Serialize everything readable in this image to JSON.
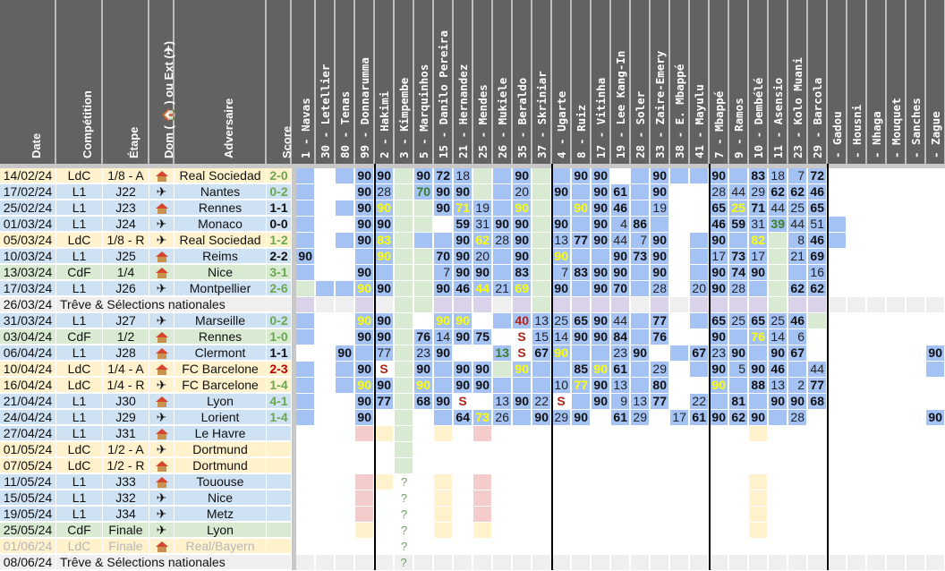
{
  "colors": {
    "header_bg": "#626262",
    "ldc_row": "#fff2cc",
    "l1_row": "#cfe2f3",
    "cdf_row": "#d9ead3",
    "break_row": "#efefef",
    "played_cell": "#a4c2f4",
    "green_cell": "#d9ead3",
    "lilac_cell": "#d9d2e9",
    "red_cell": "#f4cccc",
    "yellow_cell": "#fff2cc"
  },
  "headers": {
    "date": "Date",
    "competition": "Compétition",
    "stage": "Étape",
    "home_away": "Dom ( 🏠 ) ou Ext (✈)",
    "opponent": "Adversaire",
    "score": "Score"
  },
  "players": [
    "1 - Navas",
    "30 - Letellier",
    "80 - Tenas",
    "99 - Donnarumma",
    "2 - Hakimi",
    "3 - Kimpembe",
    "5 - Marquinhos",
    "15 - Danilo Pereira",
    "21 - Hernandez",
    "25 - Mendes",
    "26 - Mukiele",
    "35 - Beraldo",
    "37 - Skriniar",
    "4 - Ugarte",
    "8 - Ruiz",
    "17 - Vitinha",
    "19 - Lee Kang-In",
    "28 - Soler",
    "33 - Zaire-Emery",
    "38 - E. Mbappé",
    "41 - Mayulu",
    "7 - Mbappé",
    "9 - Ramos",
    "10 - Dembélé",
    "11 - Asensio",
    "23 - Kolo Muani",
    "29 - Barcola",
    " - Gadou",
    " - Housni",
    " - Nhaga",
    " - Mouquet",
    " - Sanches",
    " - Zague"
  ],
  "icons": {
    "home": "house-icon",
    "away": "plane-icon"
  },
  "matches": [
    {
      "date": "14/02/24",
      "comp": "LdC",
      "stage": "1/8 - A",
      "venue": "home",
      "opp": "Real Sociedad",
      "score": "2-0",
      "res": "w",
      "type": "ldc",
      "cells": [
        "p",
        "",
        "p",
        "90|b",
        "90|b",
        "g",
        "90|b",
        "72|b",
        "18",
        "g",
        "p",
        "90|b",
        "g",
        "p",
        "90|b",
        "90|b",
        "",
        "p",
        "90|b",
        "p",
        "p",
        "90|b",
        "p",
        "83|b",
        "18",
        "7",
        "72|b"
      ]
    },
    {
      "date": "17/02/24",
      "comp": "L1",
      "stage": "J22",
      "venue": "away",
      "opp": "Nantes",
      "score": "0-2",
      "res": "w",
      "type": "l1",
      "cells": [
        "p",
        "",
        "",
        "90|b",
        "28",
        "g",
        "70|g",
        "90|b",
        "90|b",
        "g",
        "p",
        "20",
        "g",
        "90|b",
        "p",
        "90|b",
        "61|b",
        "p",
        "90|b",
        "",
        "",
        "28",
        "44",
        "29",
        "62|b",
        "62|b",
        "46|b"
      ]
    },
    {
      "date": "25/02/24",
      "comp": "L1",
      "stage": "J23",
      "venue": "home",
      "opp": "Rennes",
      "score": "1-1",
      "res": "d",
      "type": "l1",
      "cells": [
        "p",
        "",
        "p",
        "90|b",
        "90|y",
        "g",
        "g",
        "90|b",
        "71|y",
        "19",
        "p",
        "90|y",
        "g",
        "p",
        "90|y",
        "90|b",
        "46|b",
        "p",
        "19",
        "",
        "",
        "65|b",
        "25|y",
        "71|b",
        "44",
        "25",
        "65|b"
      ]
    },
    {
      "date": "01/03/24",
      "comp": "L1",
      "stage": "J24",
      "venue": "away",
      "opp": "Monaco",
      "score": "0-0",
      "res": "d",
      "type": "l1",
      "cells": [
        "p",
        "",
        "",
        "90|b",
        "90|b",
        "g",
        "g",
        "",
        "59|b",
        "31",
        "90|b",
        "90|b",
        "g",
        "90|b",
        "p",
        "90|b",
        "4",
        "86|b",
        "p",
        "",
        "",
        "46|b",
        "59|b",
        "31",
        "39|g",
        "44",
        "51",
        "p"
      ]
    },
    {
      "date": "05/03/24",
      "comp": "LdC",
      "stage": "1/8 - R",
      "venue": "away",
      "opp": "Real Sociedad",
      "score": "1-2",
      "res": "w",
      "type": "ldc",
      "cells": [
        "p",
        "",
        "p",
        "90|b",
        "83|y",
        "g",
        "p",
        "p",
        "90|b",
        "62|y",
        "28",
        "90|b",
        "g",
        "13",
        "77|b",
        "90|b",
        "44",
        "7",
        "90|b",
        "",
        "p",
        "90|b",
        "p",
        "82|y",
        "g",
        "8",
        "46|b",
        "p"
      ]
    },
    {
      "date": "10/03/24",
      "comp": "L1",
      "stage": "J25",
      "venue": "home",
      "opp": "Reims",
      "score": "2-2",
      "res": "d",
      "type": "l1",
      "cells": [
        "90|b",
        "",
        "",
        "p",
        "90|y",
        "g",
        "g",
        "70|b",
        "90|b",
        "20",
        "p",
        "90|b",
        "g",
        "90|y",
        "p",
        "p",
        "90|b",
        "73|b",
        "90|b",
        "",
        "p",
        "17",
        "73|b",
        "17",
        "g",
        "21",
        "69|b"
      ]
    },
    {
      "date": "13/03/24",
      "comp": "CdF",
      "stage": "1/4",
      "venue": "home",
      "opp": "Nice",
      "score": "3-1",
      "res": "w",
      "type": "cdf",
      "cells": [
        "p",
        "",
        "",
        "90|b",
        "p",
        "g",
        "g",
        "7",
        "90|b",
        "90|b",
        "p",
        "83|b",
        "g",
        "7",
        "83|b",
        "90|b",
        "90|b",
        "p",
        "90|b",
        "",
        "p",
        "90|b",
        "74|b",
        "90|b",
        "g",
        "p",
        "16"
      ]
    },
    {
      "date": "17/03/24",
      "comp": "L1",
      "stage": "J26",
      "venue": "away",
      "opp": "Montpellier",
      "score": "2-6",
      "res": "w",
      "type": "l1",
      "cells": [
        "g",
        "p",
        "p",
        "90|y",
        "90|b",
        "g",
        "g",
        "90|b",
        "46|b",
        "44|y",
        "21",
        "69|y",
        "g",
        "90|b",
        "p",
        "90|b",
        "70|b",
        "p",
        "28",
        "",
        "20",
        "90|b",
        "28",
        "p",
        "g",
        "62|b",
        "62|b"
      ]
    },
    {
      "date": "26/03/24",
      "break": "Trêve & Sélections nationales",
      "type": "break"
    },
    {
      "date": "31/03/24",
      "comp": "L1",
      "stage": "J27",
      "venue": "away",
      "opp": "Marseille",
      "score": "0-2",
      "res": "w",
      "type": "l1",
      "cells": [
        "p",
        "",
        "",
        "90|y",
        "90|b",
        "g",
        "",
        "90|y",
        "90|y",
        "",
        "p",
        "40|r",
        "13",
        "25",
        "65|b",
        "90|b",
        "44",
        "p",
        "77|b",
        "",
        "p",
        "65|b",
        "25",
        "65|b",
        "25",
        "46|b",
        "g"
      ]
    },
    {
      "date": "03/04/24",
      "comp": "CdF",
      "stage": "1/2",
      "venue": "home",
      "opp": "Rennes",
      "score": "1-0",
      "res": "w",
      "type": "cdf",
      "cells": [
        "p",
        "",
        "",
        "90|b",
        "90|b",
        "g",
        "76|b",
        "14",
        "90|b",
        "75|b",
        "",
        "S|s",
        "15",
        "14",
        "90|b",
        "90|b",
        "84|b",
        "p",
        "76|b",
        "",
        "",
        "90|b",
        "p",
        "76|y",
        "14",
        "6",
        ""
      ]
    },
    {
      "date": "06/04/24",
      "comp": "L1",
      "stage": "J28",
      "venue": "home",
      "opp": "Clermont",
      "score": "1-1",
      "res": "d",
      "type": "l1",
      "cells": [
        "",
        "",
        "90|b",
        "p",
        "77",
        "g",
        "23",
        "90|b",
        "",
        "",
        "13|g",
        "S|s",
        "67|b",
        "90|y",
        "p",
        "p",
        "23",
        "90|b",
        "",
        "p",
        "67|b",
        "23",
        "90|b",
        "p",
        "90|b",
        "67|b",
        "",
        "",
        "",
        "",
        "",
        "",
        "90|b"
      ]
    },
    {
      "date": "10/04/24",
      "comp": "LdC",
      "stage": "1/4 - A",
      "venue": "home",
      "opp": "FC Barcelone",
      "score": "2-3",
      "res": "l",
      "type": "ldc",
      "cells": [
        "p",
        "",
        "p",
        "90|b",
        "S|s",
        "g",
        "90|b",
        "p",
        "90|b",
        "90|b",
        "g",
        "90|y",
        "p",
        "p",
        "85|b",
        "90|y",
        "61|b",
        "p",
        "29",
        "",
        "p",
        "90|b",
        "5",
        "90|b",
        "46|b",
        "p",
        "44",
        "",
        "",
        "",
        "",
        "",
        "p"
      ]
    },
    {
      "date": "16/04/24",
      "comp": "LdC",
      "stage": "1/4 - R",
      "venue": "away",
      "opp": "FC Barcelone",
      "score": "1-4",
      "res": "w",
      "type": "ldc",
      "cells": [
        "p",
        "",
        "p",
        "90|y",
        "90|b",
        "g",
        "90|y",
        "p",
        "90|b",
        "90|b",
        "p",
        "p",
        "p",
        "10",
        "77|y",
        "90|b",
        "13",
        "p",
        "80|b",
        "",
        "",
        "90|y",
        "p",
        "88|b",
        "13",
        "2",
        "77|b"
      ]
    },
    {
      "date": "21/04/24",
      "comp": "L1",
      "stage": "J30",
      "venue": "home",
      "opp": "Lyon",
      "score": "4-1",
      "res": "w",
      "type": "l1",
      "cells": [
        "p",
        "",
        "",
        "90|b",
        "77|b",
        "g",
        "68|b",
        "90|b",
        "S|s",
        "",
        "13",
        "90|b",
        "22",
        "S|s",
        "p",
        "90|b",
        "9",
        "13",
        "77|b",
        "",
        "22",
        "p",
        "81|b",
        "p",
        "90|b",
        "90|b",
        "68|b"
      ]
    },
    {
      "date": "24/04/24",
      "comp": "L1",
      "stage": "J29",
      "venue": "away",
      "opp": "Lorient",
      "score": "1-4",
      "res": "w",
      "type": "l1",
      "cells": [
        "p",
        "",
        "",
        "90|b",
        "",
        "g",
        "",
        "p",
        "64|b",
        "73|y",
        "26",
        "p",
        "90|b",
        "29",
        "90|b",
        "",
        "61|b",
        "29",
        "",
        "17",
        "61|b",
        "90|b",
        "62|b",
        "90|b",
        "p",
        "28",
        "",
        "",
        "",
        "",
        "",
        "",
        "90|b"
      ]
    },
    {
      "date": "27/04/24",
      "comp": "L1",
      "stage": "J31",
      "venue": "home",
      "opp": "Le Havre",
      "score": "",
      "type": "l1",
      "cells": [
        "",
        "",
        "",
        "rd",
        "yl",
        "g",
        "",
        "yl",
        "",
        "rd",
        "",
        "",
        "",
        "",
        "",
        "",
        "",
        "",
        "",
        "",
        "",
        "",
        "",
        "yl"
      ]
    },
    {
      "date": "01/05/24",
      "comp": "LdC",
      "stage": "1/2 - A",
      "venue": "away",
      "opp": "Dortmund",
      "score": "",
      "type": "ldc",
      "cells": [
        "",
        "",
        "",
        "",
        "",
        "g"
      ]
    },
    {
      "date": "07/05/24",
      "comp": "LdC",
      "stage": "1/2 - R",
      "venue": "home",
      "opp": "Dortmund",
      "score": "",
      "type": "ldc",
      "cells": [
        "",
        "",
        "",
        "",
        "",
        "g"
      ]
    },
    {
      "date": "11/05/24",
      "comp": "L1",
      "stage": "J33",
      "venue": "home",
      "opp": "Tououse",
      "score": "",
      "type": "l1",
      "cells": [
        "",
        "",
        "",
        "rd",
        "yl",
        "?|q",
        "",
        "yl",
        "",
        "rd",
        "",
        "",
        "",
        "",
        "",
        "",
        "",
        "",
        "",
        "",
        "",
        "",
        "",
        "yl"
      ]
    },
    {
      "date": "15/05/24",
      "comp": "L1",
      "stage": "J32",
      "venue": "away",
      "opp": "Nice",
      "score": "",
      "type": "l1",
      "cells": [
        "",
        "",
        "",
        "rd",
        "",
        "?|q",
        "",
        "yl",
        "",
        "rd",
        "",
        "",
        "",
        "",
        "",
        "",
        "",
        "",
        "",
        "",
        "",
        "",
        "",
        "yl"
      ]
    },
    {
      "date": "19/05/24",
      "comp": "L1",
      "stage": "J34",
      "venue": "away",
      "opp": "Metz",
      "score": "",
      "type": "l1",
      "cells": [
        "",
        "",
        "",
        "rd",
        "",
        "?|q",
        "",
        "yl",
        "",
        "rd",
        "",
        "",
        "",
        "",
        "",
        "",
        "",
        "",
        "",
        "",
        "",
        "",
        "",
        "yl"
      ]
    },
    {
      "date": "25/05/24",
      "comp": "CdF",
      "stage": "Finale",
      "venue": "away",
      "opp": "Lyon",
      "score": "",
      "type": "cdf",
      "cells": [
        "",
        "",
        "",
        "yl",
        "",
        "?|q",
        "",
        "yl",
        "",
        "yl",
        "",
        "",
        "",
        "",
        "",
        "",
        "",
        "",
        "",
        "",
        "",
        "",
        "",
        "yl"
      ]
    },
    {
      "date": "01/06/24",
      "comp": "LdC",
      "stage": "Finale",
      "venue": "home",
      "opp": "Real/Bayern",
      "score": "",
      "type": "ldc",
      "faded": true,
      "cells": [
        "",
        "",
        "",
        "",
        "",
        "?|q"
      ]
    },
    {
      "date": "08/06/24",
      "break": "Trêve & Sélections nationales",
      "type": "break",
      "breakcells": [
        "",
        "",
        "",
        "",
        "",
        "?|q"
      ]
    }
  ]
}
